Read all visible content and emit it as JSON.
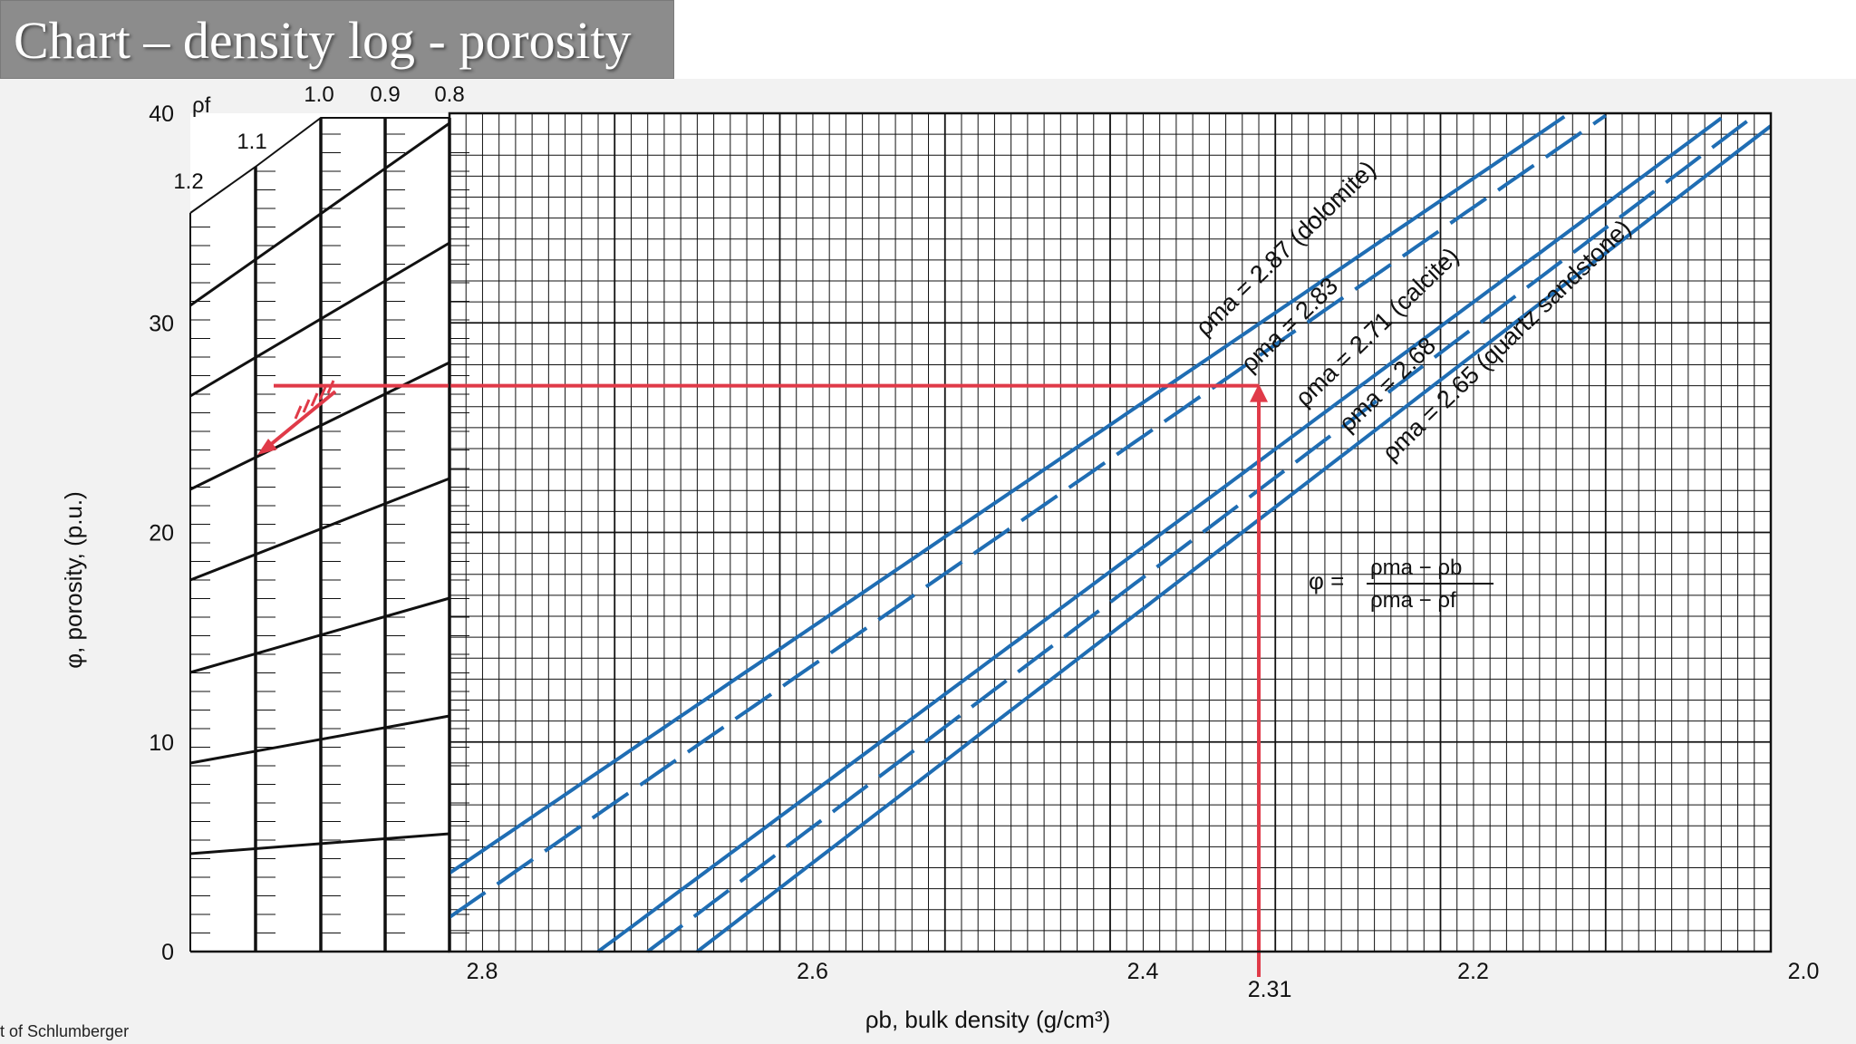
{
  "slide": {
    "title": "Chart – density log - porosity",
    "credit": "t of Schlumberger"
  },
  "chart_data": {
    "type": "line",
    "xlabel": "ρb, bulk density (g/cm³)",
    "ylabel": "φ, porosity, (p.u.)",
    "xlim": [
      2.8,
      2.0
    ],
    "ylim": [
      0,
      40
    ],
    "x_ticks": [
      "2.8",
      "2.6",
      "2.4",
      "2.2",
      "2.0"
    ],
    "y_ticks": [
      "0",
      "10",
      "20",
      "30",
      "40"
    ],
    "nomograph": {
      "label": "ρf",
      "fluid_densities": [
        "1.2",
        "1.1",
        "1.0",
        "0.9",
        "0.8"
      ]
    },
    "formula": {
      "lhs": "φ =",
      "numerator": "ρma − ρb",
      "denominator": "ρma − ρf"
    },
    "series": [
      {
        "name": "ρma = 2.87 (dolomite)",
        "matrix_density": 2.87,
        "style": "solid"
      },
      {
        "name": "ρma = 2.83",
        "matrix_density": 2.83,
        "style": "dashed"
      },
      {
        "name": "ρma = 2.71 (calcite)",
        "matrix_density": 2.71,
        "style": "solid"
      },
      {
        "name": "ρma = 2.68",
        "matrix_density": 2.68,
        "style": "dashed"
      },
      {
        "name": "ρma = 2.65 (quartz sandstone)",
        "matrix_density": 2.65,
        "style": "solid"
      }
    ],
    "example": {
      "bulk_density": 2.31,
      "bulk_density_label": "2.31",
      "porosity": 27
    },
    "colors": {
      "lines": "#1f6db3",
      "example": "#e03a48",
      "grid": "#111111"
    }
  }
}
